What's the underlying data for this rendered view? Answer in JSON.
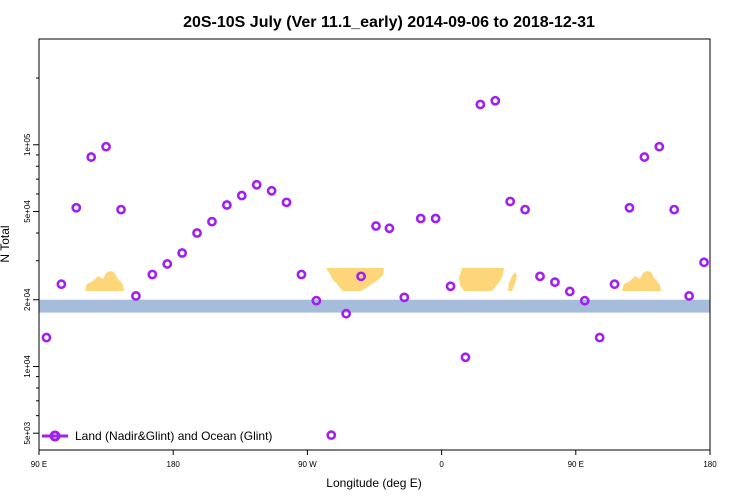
{
  "chart_data": {
    "type": "scatter",
    "title": "20S-10S July (Ver 11.1_early)   2014-09-06 to 2018-12-31",
    "xlabel": "Longitude (deg E)",
    "ylabel": "N Total",
    "y_scale": "log",
    "xlim": [
      90,
      540
    ],
    "ylim": [
      4200,
      300000
    ],
    "x_tick_values": [
      90,
      180,
      270,
      360,
      450,
      540
    ],
    "x_tick_labels": [
      "90 E",
      "180",
      "90 W",
      "0",
      "90 E",
      "180"
    ],
    "y_tick_values": [
      5000,
      10000,
      20000,
      50000,
      100000
    ],
    "y_tick_labels": [
      "5e+03",
      "1e+04",
      "2e+04",
      "5e+04",
      "1e+05"
    ],
    "legend": {
      "label": "Land (Nadir&Glint) and Ocean (Glint)",
      "position": "bottom-left"
    },
    "series": [
      {
        "name": "Land (Nadir&Glint) and Ocean (Glint)",
        "color": "#a020f0",
        "x": [
          95,
          105,
          115,
          125,
          135,
          145,
          155,
          166,
          176,
          186,
          196,
          206,
          216,
          226,
          236,
          246,
          256,
          266,
          276,
          286,
          296,
          306,
          316,
          325,
          335,
          346,
          356,
          366,
          376,
          386,
          396,
          406,
          416,
          426,
          436,
          446,
          456,
          466,
          476,
          486,
          496,
          506,
          516,
          526,
          536
        ],
        "y": [
          13500,
          23500,
          52000,
          88000,
          98000,
          51000,
          20800,
          26000,
          29000,
          32500,
          40000,
          45000,
          53500,
          59000,
          66000,
          62000,
          55000,
          26000,
          19800,
          4900,
          17300,
          25500,
          43000,
          42000,
          20500,
          46500,
          46500,
          23000,
          11000,
          152000,
          158000,
          55500,
          51000,
          25500,
          24000,
          21800,
          19800,
          13500,
          23500,
          52000,
          88000,
          98000,
          51000,
          20800,
          29500
        ]
      }
    ],
    "background": {
      "band_y": [
        17500,
        20000
      ],
      "ocean_color": "#a6bcdb",
      "land_color": "#fdd67a"
    }
  }
}
